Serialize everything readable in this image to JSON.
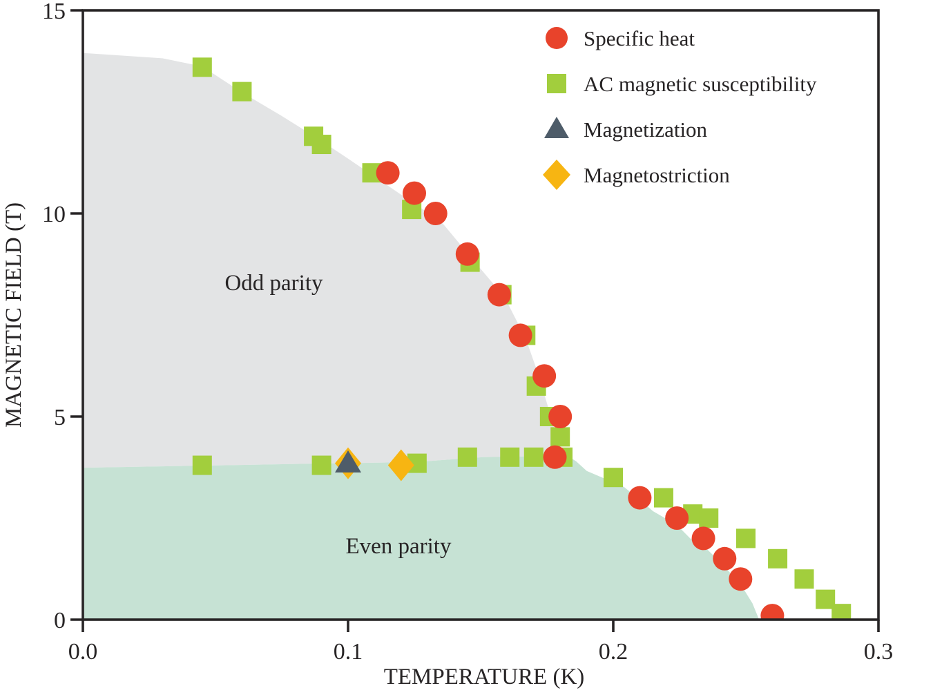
{
  "figure": {
    "background": "#ffffff",
    "text_color": "#272425",
    "axis_color": "#272425"
  },
  "chart_data": {
    "type": "scatter",
    "title": "",
    "xlabel": "TEMPERATURE (K)",
    "ylabel": "MAGNETIC FIELD (T)",
    "xlim": [
      0,
      0.3
    ],
    "ylim": [
      0,
      15
    ],
    "grid": false,
    "legend_position": "upper-right",
    "xticks": [
      {
        "value": 0.0,
        "label": "0.0"
      },
      {
        "value": 0.1,
        "label": "0.1"
      },
      {
        "value": 0.2,
        "label": "0.2"
      },
      {
        "value": 0.3,
        "label": "0.3"
      }
    ],
    "yticks": [
      {
        "value": 0,
        "label": "0"
      },
      {
        "value": 5,
        "label": "5"
      },
      {
        "value": 10,
        "label": "10"
      },
      {
        "value": 15,
        "label": "15"
      }
    ],
    "regions": [
      {
        "name": "odd-parity",
        "label": "Odd parity",
        "label_pos": [
          0.072,
          8.3
        ],
        "color": "#e3e4e5",
        "polygon": [
          [
            0.0,
            13.95
          ],
          [
            0.03,
            13.82
          ],
          [
            0.045,
            13.62
          ],
          [
            0.06,
            12.98
          ],
          [
            0.075,
            12.4
          ],
          [
            0.0885,
            11.85
          ],
          [
            0.1,
            11.35
          ],
          [
            0.109,
            10.95
          ],
          [
            0.125,
            10.24
          ],
          [
            0.135,
            9.81
          ],
          [
            0.148,
            8.79
          ],
          [
            0.159,
            7.94
          ],
          [
            0.167,
            6.92
          ],
          [
            0.172,
            5.99
          ],
          [
            0.177,
            4.88
          ],
          [
            0.18,
            4.29
          ],
          [
            0.182,
            4.06
          ],
          [
            0.17,
            4.02
          ],
          [
            0.151,
            4.0
          ],
          [
            0.125,
            3.88
          ],
          [
            0.086,
            3.84
          ],
          [
            0.045,
            3.79
          ],
          [
            0.0,
            3.74
          ]
        ]
      },
      {
        "name": "even-parity",
        "label": "Even parity",
        "label_pos": [
          0.119,
          1.82
        ],
        "color": "#c6e2d4",
        "polygon": [
          [
            0.0,
            3.74
          ],
          [
            0.045,
            3.79
          ],
          [
            0.086,
            3.84
          ],
          [
            0.125,
            3.88
          ],
          [
            0.151,
            4.0
          ],
          [
            0.17,
            4.02
          ],
          [
            0.182,
            4.06
          ],
          [
            0.186,
            3.9
          ],
          [
            0.19,
            3.66
          ],
          [
            0.204,
            3.27
          ],
          [
            0.21,
            2.95
          ],
          [
            0.215,
            2.67
          ],
          [
            0.224,
            2.33
          ],
          [
            0.229,
            2.0
          ],
          [
            0.234,
            1.82
          ],
          [
            0.242,
            1.31
          ],
          [
            0.249,
            0.77
          ],
          [
            0.2525,
            0.4
          ],
          [
            0.255,
            0.0
          ],
          [
            0.0,
            0.0
          ]
        ]
      }
    ],
    "series": [
      {
        "name": "Specific heat",
        "marker": "circle",
        "color": "#e8432b",
        "points": [
          [
            0.115,
            11.0
          ],
          [
            0.125,
            10.5
          ],
          [
            0.133,
            10.0
          ],
          [
            0.145,
            9.0
          ],
          [
            0.157,
            8.0
          ],
          [
            0.165,
            7.0
          ],
          [
            0.174,
            6.0
          ],
          [
            0.18,
            5.0
          ],
          [
            0.178,
            4.0
          ],
          [
            0.21,
            3.0
          ],
          [
            0.224,
            2.5
          ],
          [
            0.234,
            2.0
          ],
          [
            0.242,
            1.5
          ],
          [
            0.248,
            1.0
          ],
          [
            0.26,
            0.1
          ]
        ]
      },
      {
        "name": "AC magnetic susceptibility",
        "marker": "square",
        "color": "#a2ce3d",
        "points": [
          [
            0.045,
            13.6
          ],
          [
            0.06,
            13.0
          ],
          [
            0.087,
            11.9
          ],
          [
            0.09,
            11.7
          ],
          [
            0.109,
            11.0
          ],
          [
            0.124,
            10.1
          ],
          [
            0.146,
            8.8
          ],
          [
            0.158,
            8.0
          ],
          [
            0.167,
            7.0
          ],
          [
            0.171,
            5.75
          ],
          [
            0.176,
            5.0
          ],
          [
            0.18,
            4.5
          ],
          [
            0.161,
            4.0
          ],
          [
            0.17,
            4.0
          ],
          [
            0.181,
            4.0
          ],
          [
            0.145,
            4.0
          ],
          [
            0.126,
            3.85
          ],
          [
            0.09,
            3.8
          ],
          [
            0.045,
            3.8
          ],
          [
            0.2,
            3.5
          ],
          [
            0.219,
            3.0
          ],
          [
            0.23,
            2.6
          ],
          [
            0.236,
            2.5
          ],
          [
            0.25,
            2.0
          ],
          [
            0.262,
            1.5
          ],
          [
            0.272,
            1.0
          ],
          [
            0.28,
            0.5
          ],
          [
            0.286,
            0.15
          ]
        ]
      },
      {
        "name": "Magnetization",
        "marker": "triangle",
        "color": "#4e5c69",
        "points": [
          [
            0.1,
            3.85
          ]
        ]
      },
      {
        "name": "Magnetostriction",
        "marker": "diamond",
        "color": "#f7b512",
        "points": [
          [
            0.1,
            3.85
          ],
          [
            0.12,
            3.8
          ]
        ]
      }
    ]
  }
}
